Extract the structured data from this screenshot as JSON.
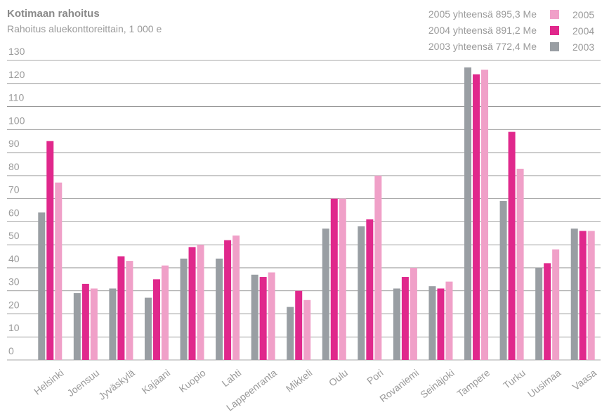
{
  "chart_data": {
    "type": "bar",
    "title": "Kotimaan rahoitus",
    "subtitle": "Rahoitus aluekonttoreittain, 1 000 e",
    "annotations": [
      "2005 yhteensä 895,3 Me",
      "2004 yhteensä 891,2 Me",
      "2003 yhteensä 772,4 Me"
    ],
    "categories": [
      "Helsinki",
      "Joensuu",
      "Jyväskylä",
      "Kajaani",
      "Kuopio",
      "Lahti",
      "Lappeenranta",
      "Mikkeli",
      "Oulu",
      "Pori",
      "Rovaniemi",
      "Seinäjoki",
      "Tampere",
      "Turku",
      "Uusimaa",
      "Vaasa"
    ],
    "series": [
      {
        "name": "2003",
        "color": "#999ea3",
        "values": [
          64,
          29,
          31,
          27,
          44,
          44,
          37,
          23,
          57,
          58,
          31,
          32,
          127,
          69,
          40,
          57
        ]
      },
      {
        "name": "2004",
        "color": "#e0288c",
        "values": [
          95,
          33,
          45,
          35,
          49,
          52,
          36,
          30,
          70,
          61,
          36,
          31,
          124,
          99,
          42,
          56
        ]
      },
      {
        "name": "2005",
        "color": "#f0a0c8",
        "values": [
          77,
          31,
          43,
          41,
          50,
          54,
          38,
          26,
          70,
          80,
          40,
          34,
          126,
          83,
          48,
          56
        ]
      }
    ],
    "ylim": [
      0,
      130
    ],
    "yticks": [
      0,
      10,
      20,
      30,
      40,
      50,
      60,
      70,
      80,
      90,
      100,
      110,
      120,
      130
    ],
    "grid": true
  }
}
